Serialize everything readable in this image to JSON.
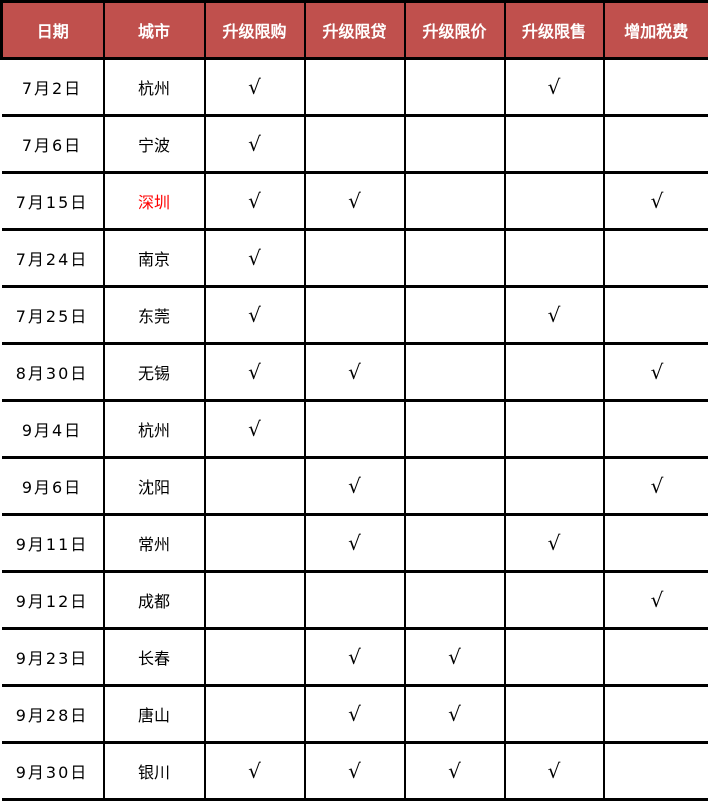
{
  "colors": {
    "header_bg": "#C0504D",
    "header_text": "#FFFFFF",
    "border": "#000000",
    "text": "#000000",
    "highlight_city": "#FF0000"
  },
  "check_glyph": "√",
  "chart_data": {
    "type": "table",
    "columns": [
      "日期",
      "城市",
      "升级限购",
      "升级限贷",
      "升级限价",
      "升级限售",
      "增加税费"
    ],
    "rows": [
      {
        "date": "7月2日",
        "city": "杭州",
        "city_highlight": false,
        "checks": [
          true,
          false,
          false,
          true,
          false
        ]
      },
      {
        "date": "7月6日",
        "city": "宁波",
        "city_highlight": false,
        "checks": [
          true,
          false,
          false,
          false,
          false
        ]
      },
      {
        "date": "7月15日",
        "city": "深圳",
        "city_highlight": true,
        "checks": [
          true,
          true,
          false,
          false,
          true
        ]
      },
      {
        "date": "7月24日",
        "city": "南京",
        "city_highlight": false,
        "checks": [
          true,
          false,
          false,
          false,
          false
        ]
      },
      {
        "date": "7月25日",
        "city": "东莞",
        "city_highlight": false,
        "checks": [
          true,
          false,
          false,
          true,
          false
        ]
      },
      {
        "date": "8月30日",
        "city": "无锡",
        "city_highlight": false,
        "checks": [
          true,
          true,
          false,
          false,
          true
        ]
      },
      {
        "date": "9月4日",
        "city": "杭州",
        "city_highlight": false,
        "checks": [
          true,
          false,
          false,
          false,
          false
        ]
      },
      {
        "date": "9月6日",
        "city": "沈阳",
        "city_highlight": false,
        "checks": [
          false,
          true,
          false,
          false,
          true
        ]
      },
      {
        "date": "9月11日",
        "city": "常州",
        "city_highlight": false,
        "checks": [
          false,
          true,
          false,
          true,
          false
        ]
      },
      {
        "date": "9月12日",
        "city": "成都",
        "city_highlight": false,
        "checks": [
          false,
          false,
          false,
          false,
          true
        ]
      },
      {
        "date": "9月23日",
        "city": "长春",
        "city_highlight": false,
        "checks": [
          false,
          true,
          true,
          false,
          false
        ]
      },
      {
        "date": "9月28日",
        "city": "唐山",
        "city_highlight": false,
        "checks": [
          false,
          true,
          true,
          false,
          false
        ]
      },
      {
        "date": "9月30日",
        "city": "银川",
        "city_highlight": false,
        "checks": [
          true,
          true,
          true,
          true,
          false
        ]
      }
    ]
  }
}
